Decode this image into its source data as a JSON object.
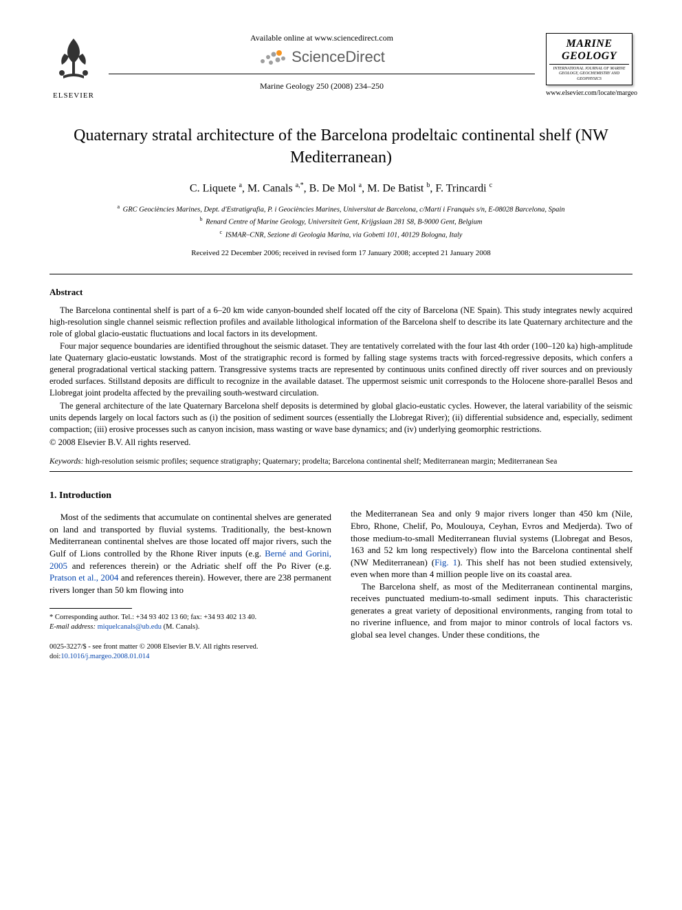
{
  "header": {
    "elsevier_label": "ELSEVIER",
    "available_online": "Available online at www.sciencedirect.com",
    "sciencedirect_text": "ScienceDirect",
    "journal_citation": "Marine Geology 250 (2008) 234–250",
    "journal_cover": {
      "title_line1": "MARINE",
      "title_line2": "GEOLOGY",
      "subtitle": "INTERNATIONAL JOURNAL OF MARINE GEOLOGY, GEOCHEMISTRY AND GEOPHYSICS"
    },
    "journal_url": "www.elsevier.com/locate/margeo"
  },
  "article": {
    "title": "Quaternary stratal architecture of the Barcelona prodeltaic continental shelf (NW Mediterranean)",
    "authors_html": "C. Liquete <sup>a</sup>, M. Canals <sup>a,*</sup>, B. De Mol <sup>a</sup>, M. De Batist <sup>b</sup>, F. Trincardi <sup>c</sup>",
    "affiliations": [
      {
        "sup": "a",
        "text": "GRC Geociències Marines, Dept. d'Estratigrafia, P. i Geociències Marines, Universitat de Barcelona, c/Martí i Franquès s/n, E-08028 Barcelona, Spain"
      },
      {
        "sup": "b",
        "text": "Renard Centre of Marine Geology, Universiteit Gent, Krijgslaan 281 S8, B-9000 Gent, Belgium"
      },
      {
        "sup": "c",
        "text": "ISMAR–CNR, Sezione di Geologia Marina, via Gobetti 101, 40129 Bologna, Italy"
      }
    ],
    "dates": "Received 22 December 2006; received in revised form 17 January 2008; accepted 21 January 2008"
  },
  "abstract": {
    "heading": "Abstract",
    "paragraphs": [
      "The Barcelona continental shelf is part of a 6–20 km wide canyon-bounded shelf located off the city of Barcelona (NE Spain). This study integrates newly acquired high-resolution single channel seismic reflection profiles and available lithological information of the Barcelona shelf to describe its late Quaternary architecture and the role of global glacio-eustatic fluctuations and local factors in its development.",
      "Four major sequence boundaries are identified throughout the seismic dataset. They are tentatively correlated with the four last 4th order (100–120 ka) high-amplitude late Quaternary glacio-eustatic lowstands. Most of the stratigraphic record is formed by falling stage systems tracts with forced-regressive deposits, which confers a general progradational vertical stacking pattern. Transgressive systems tracts are represented by continuous units confined directly off river sources and on previously eroded surfaces. Stillstand deposits are difficult to recognize in the available dataset. The uppermost seismic unit corresponds to the Holocene shore-parallel Besos and Llobregat joint prodelta affected by the prevailing south-westward circulation.",
      "The general architecture of the late Quaternary Barcelona shelf deposits is determined by global glacio-eustatic cycles. However, the lateral variability of the seismic units depends largely on local factors such as (i) the position of sediment sources (essentially the Llobregat River); (ii) differential subsidence and, especially, sediment compaction; (iii) erosive processes such as canyon incision, mass wasting or wave base dynamics; and (iv) underlying geomorphic restrictions."
    ],
    "copyright": "© 2008 Elsevier B.V. All rights reserved.",
    "keywords_label": "Keywords:",
    "keywords": "high-resolution seismic profiles; sequence stratigraphy; Quaternary; prodelta; Barcelona continental shelf; Mediterranean margin; Mediterranean Sea"
  },
  "section1": {
    "heading": "1. Introduction",
    "col1": {
      "p1_pre": "Most of the sediments that accumulate on continental shelves are generated on land and transported by fluvial systems. Traditionally, the best-known Mediterranean continental shelves are those located off major rivers, such the Gulf of Lions controlled by the Rhone River inputs (e.g. ",
      "ref1": "Berné and Gorini, 2005",
      "p1_mid": " and references therein) or the Adriatic shelf off the Po River (e.g. ",
      "ref2": "Pratson et al., 2004",
      "p1_post": " and references therein). However, there are 238 permanent rivers longer than 50 km flowing into"
    },
    "col2": {
      "p1_pre": "the Mediterranean Sea and only 9 major rivers longer than 450 km (Nile, Ebro, Rhone, Chelif, Po, Moulouya, Ceyhan, Evros and Medjerda). Two of those medium-to-small Mediterranean fluvial systems (Llobregat and Besos, 163 and 52 km long respectively) flow into the Barcelona continental shelf (NW Mediterranean) (",
      "ref1": "Fig. 1",
      "p1_post": "). This shelf has not been studied extensively, even when more than 4 million people live on its coastal area.",
      "p2": "The Barcelona shelf, as most of the Mediterranean continental margins, receives punctuated medium-to-small sediment inputs. This characteristic generates a great variety of depositional environments, ranging from total to no riverine influence, and from major to minor controls of local factors vs. global sea level changes. Under these conditions, the"
    }
  },
  "footnote": {
    "corr": "* Corresponding author. Tel.: +34 93 402 13 60; fax: +34 93 402 13 40.",
    "email_label": "E-mail address:",
    "email": "miquelcanals@ub.edu",
    "email_author": "(M. Canals)."
  },
  "footer": {
    "issn_line": "0025-3227/$ - see front matter © 2008 Elsevier B.V. All rights reserved.",
    "doi_label": "doi:",
    "doi": "10.1016/j.margeo.2008.01.014"
  },
  "colors": {
    "link": "#0645ad",
    "text": "#000000",
    "background": "#ffffff",
    "sd_orange": "#f7941e",
    "sd_gray": "#9e9e9e",
    "sd_text": "#5a5a5a"
  }
}
